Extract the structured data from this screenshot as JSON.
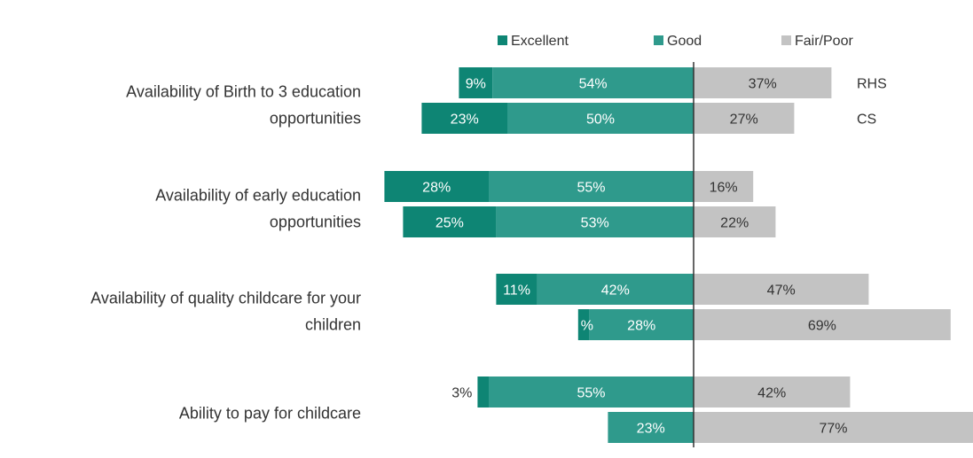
{
  "chart_data": {
    "type": "bar",
    "orientation": "horizontal-diverging",
    "title": "",
    "xlabel": "",
    "ylabel": "",
    "grid": false,
    "legend_position": "top",
    "categories": [
      "Availability of Birth to 3 education opportunities",
      "Availability of early education opportunities",
      "Availability of quality childcare for your children",
      "Ability to pay for childcare"
    ],
    "category_lines": [
      [
        "Availability of Birth to 3 education",
        "opportunities"
      ],
      [
        "Availability of early education",
        "opportunities"
      ],
      [
        "Availability of quality childcare for your",
        "children"
      ],
      [
        "Ability to pay for childcare"
      ]
    ],
    "groups": [
      {
        "name": "RHS",
        "excellent": [
          9,
          28,
          11,
          3
        ],
        "good": [
          54,
          55,
          42,
          55
        ],
        "fair_poor": [
          37,
          16,
          47,
          42
        ]
      },
      {
        "name": "CS",
        "excellent": [
          23,
          25,
          3,
          0
        ],
        "good": [
          50,
          53,
          28,
          23
        ],
        "fair_poor": [
          27,
          22,
          69,
          77
        ]
      }
    ],
    "segment_labels": {
      "RHS": {
        "excellent": [
          "9%",
          "28%",
          "11%",
          "3%"
        ],
        "good": [
          "54%",
          "55%",
          "42%",
          "55%"
        ],
        "fair_poor": [
          "37%",
          "16%",
          "47%",
          "42%"
        ]
      },
      "CS": {
        "excellent": [
          "23%",
          "25%",
          "%",
          ""
        ],
        "good": [
          "50%",
          "53%",
          "28%",
          "23%"
        ],
        "fair_poor": [
          "27%",
          "22%",
          "69%",
          "77%"
        ]
      }
    },
    "legend": [
      {
        "key": "excellent",
        "label": "Excellent",
        "color": "#0e8574"
      },
      {
        "key": "good",
        "label": "Good",
        "color": "#2f9a8c"
      },
      {
        "key": "fair_poor",
        "label": "Fair/Poor",
        "color": "#c3c3c3"
      }
    ],
    "colors": {
      "axis": "#333333",
      "label_on_dark": "#ffffff",
      "label_on_light": "#333333"
    }
  }
}
